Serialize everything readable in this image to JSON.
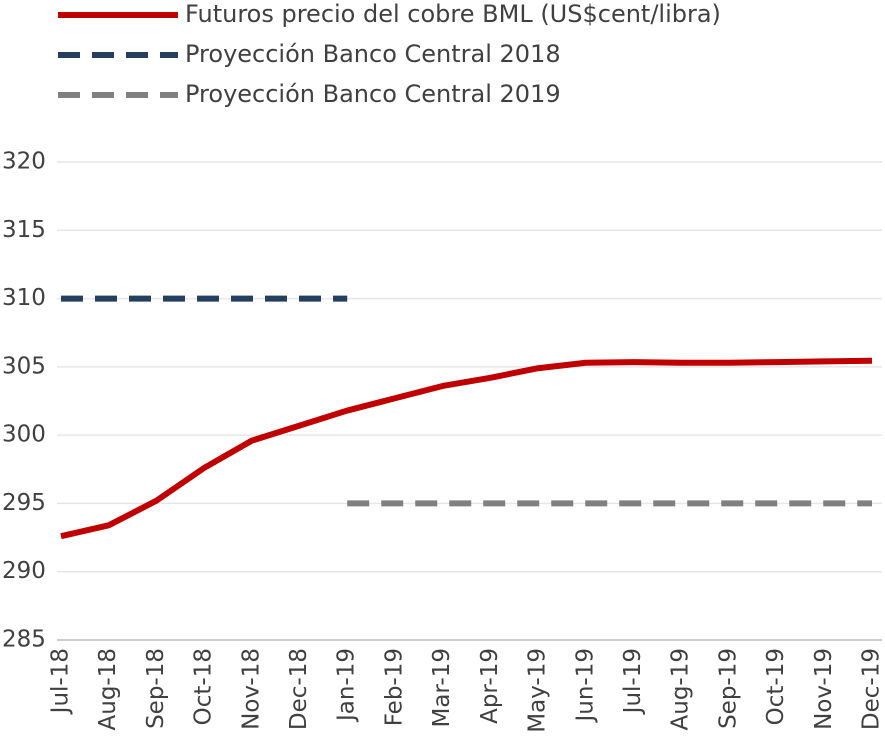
{
  "chart_data": {
    "type": "line",
    "categories": [
      "Jul-18",
      "Aug-18",
      "Sep-18",
      "Oct-18",
      "Nov-18",
      "Dec-18",
      "Jan-19",
      "Feb-19",
      "Mar-19",
      "Apr-19",
      "May-19",
      "Jun-19",
      "Jul-19",
      "Aug-19",
      "Sep-19",
      "Oct-19",
      "Nov-19",
      "Dec-19"
    ],
    "series": [
      {
        "name": "Futuros precio del cobre BML (US$cent/libra)",
        "color": "#c00000",
        "dash": "solid",
        "values": [
          292.6,
          293.4,
          295.2,
          297.6,
          299.6,
          300.7,
          301.8,
          302.7,
          303.6,
          304.2,
          304.9,
          305.3,
          305.35,
          305.3,
          305.3,
          305.35,
          305.4,
          305.45
        ]
      },
      {
        "name": "Proyección Banco Central 2018",
        "color": "#243f60",
        "dash": "dashed",
        "values": [
          310,
          310,
          310,
          310,
          310,
          310,
          310,
          null,
          null,
          null,
          null,
          null,
          null,
          null,
          null,
          null,
          null,
          null
        ]
      },
      {
        "name": "Proyección Banco Central 2019",
        "color": "#808080",
        "dash": "dashed",
        "values": [
          null,
          null,
          null,
          null,
          null,
          null,
          295,
          295,
          295,
          295,
          295,
          295,
          295,
          295,
          295,
          295,
          295,
          295
        ]
      }
    ],
    "ylim": [
      285,
      320
    ],
    "yticks": [
      285,
      290,
      295,
      300,
      305,
      310,
      315,
      320
    ],
    "grid": true,
    "legend": "top"
  }
}
